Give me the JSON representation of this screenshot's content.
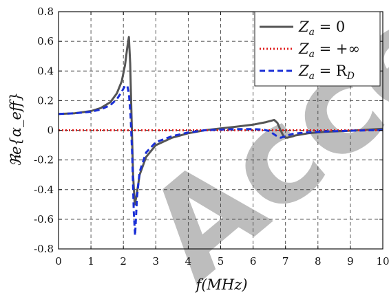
{
  "chart_data": {
    "type": "line",
    "xlabel": "f(MHz)",
    "ylabel": "ℜe{α_eff}",
    "xlim": [
      0,
      10
    ],
    "ylim": [
      -0.8,
      0.8
    ],
    "xticks": [
      "0",
      "1",
      "2",
      "3",
      "4",
      "5",
      "6",
      "7",
      "8",
      "9",
      "10"
    ],
    "yticks": [
      "0.8",
      "0.6",
      "0.4",
      "0.2",
      "0",
      "-0.2",
      "-0.4",
      "-0.6",
      "-0.8"
    ],
    "grid": true,
    "legend_position": "top-right",
    "series": [
      {
        "name": "Z_a = 0",
        "color": "#555555",
        "style": "solid",
        "points": [
          [
            0,
            0.11
          ],
          [
            0.5,
            0.115
          ],
          [
            1.0,
            0.13
          ],
          [
            1.3,
            0.15
          ],
          [
            1.6,
            0.19
          ],
          [
            1.8,
            0.25
          ],
          [
            1.95,
            0.33
          ],
          [
            2.05,
            0.44
          ],
          [
            2.12,
            0.56
          ],
          [
            2.17,
            0.63
          ],
          [
            2.21,
            0.45
          ],
          [
            2.25,
            0.1
          ],
          [
            2.3,
            -0.3
          ],
          [
            2.35,
            -0.5
          ],
          [
            2.4,
            -0.45
          ],
          [
            2.5,
            -0.3
          ],
          [
            2.7,
            -0.18
          ],
          [
            3.0,
            -0.1
          ],
          [
            3.5,
            -0.05
          ],
          [
            4.0,
            -0.02
          ],
          [
            4.5,
            0.0
          ],
          [
            5.0,
            0.013
          ],
          [
            5.5,
            0.025
          ],
          [
            6.0,
            0.038
          ],
          [
            6.4,
            0.055
          ],
          [
            6.65,
            0.07
          ],
          [
            6.75,
            0.05
          ],
          [
            6.85,
            0.0
          ],
          [
            6.95,
            -0.045
          ],
          [
            7.05,
            -0.05
          ],
          [
            7.3,
            -0.035
          ],
          [
            7.7,
            -0.02
          ],
          [
            8.2,
            -0.01
          ],
          [
            9.0,
            -0.003
          ],
          [
            10,
            0.01
          ]
        ]
      },
      {
        "name": "Z_a = +∞",
        "color": "#e02020",
        "style": "dotted",
        "points": [
          [
            0,
            0
          ],
          [
            10,
            0
          ]
        ]
      },
      {
        "name": "Z_a = R_D",
        "color": "#1a2fd6",
        "style": "dashed",
        "points": [
          [
            0,
            0.11
          ],
          [
            0.5,
            0.115
          ],
          [
            1.0,
            0.125
          ],
          [
            1.3,
            0.14
          ],
          [
            1.6,
            0.17
          ],
          [
            1.8,
            0.21
          ],
          [
            1.95,
            0.26
          ],
          [
            2.05,
            0.3
          ],
          [
            2.12,
            0.3
          ],
          [
            2.17,
            0.25
          ],
          [
            2.22,
            0.1
          ],
          [
            2.27,
            -0.15
          ],
          [
            2.32,
            -0.55
          ],
          [
            2.36,
            -0.71
          ],
          [
            2.42,
            -0.45
          ],
          [
            2.5,
            -0.28
          ],
          [
            2.7,
            -0.15
          ],
          [
            3.0,
            -0.08
          ],
          [
            3.5,
            -0.04
          ],
          [
            4.0,
            -0.015
          ],
          [
            4.5,
            0.0
          ],
          [
            5.0,
            0.005
          ],
          [
            5.5,
            0.008
          ],
          [
            6.0,
            0.008
          ],
          [
            6.3,
            0.005
          ],
          [
            6.5,
            -0.005
          ],
          [
            6.7,
            -0.035
          ],
          [
            6.85,
            -0.05
          ],
          [
            7.0,
            -0.04
          ],
          [
            7.2,
            -0.025
          ],
          [
            7.6,
            -0.015
          ],
          [
            8.2,
            -0.008
          ],
          [
            9.0,
            -0.003
          ],
          [
            10,
            0.002
          ]
        ]
      }
    ]
  },
  "legend": {
    "items": [
      {
        "lhs": "Z",
        "sub": "a",
        "rhs": " = 0"
      },
      {
        "lhs": "Z",
        "sub": "a",
        "rhs": " = +∞"
      },
      {
        "lhs": "Z",
        "sub": "a",
        "rhs": " = R",
        "rhs_sub": "D"
      }
    ]
  },
  "watermark": {
    "text": "Accepted"
  }
}
